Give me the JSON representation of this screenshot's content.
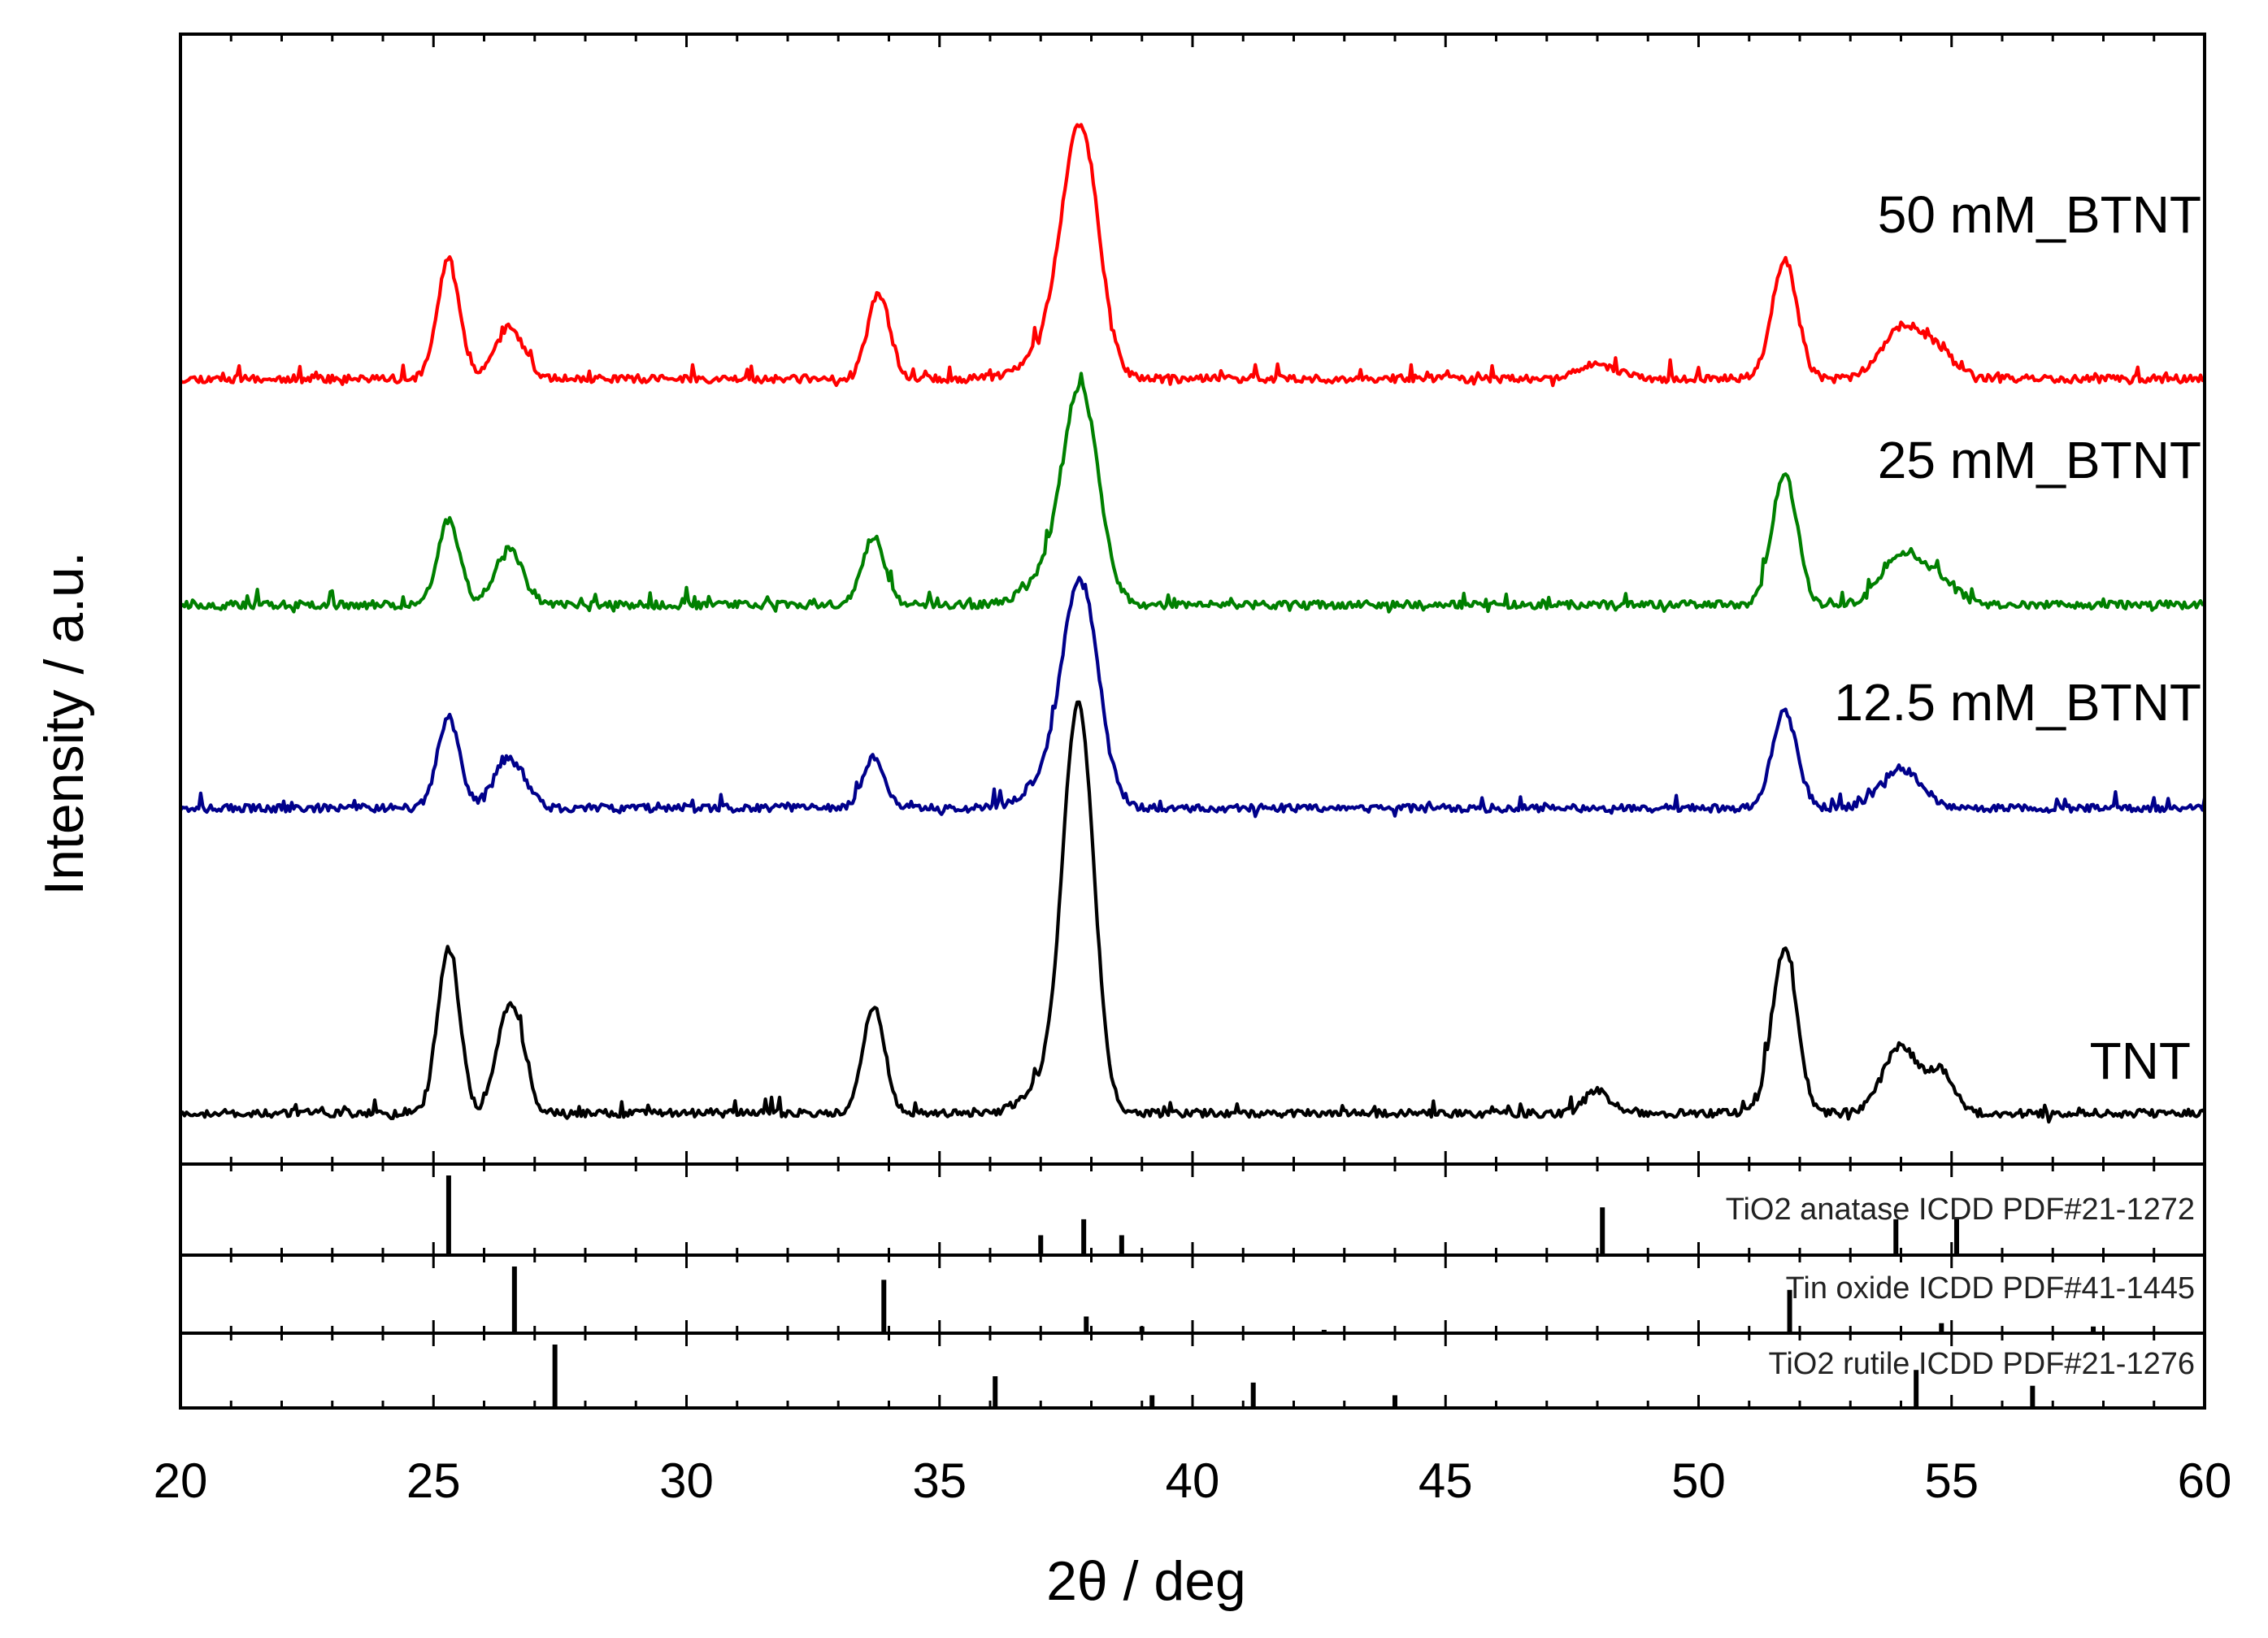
{
  "chart_data": {
    "type": "line",
    "xlabel": "2θ / deg",
    "ylabel": "Intensity / a.u.",
    "xlim": [
      20,
      60
    ],
    "x_ticks": [
      20,
      25,
      30,
      35,
      40,
      45,
      50,
      55,
      60
    ],
    "x_tick_labels": [
      "20",
      "25",
      "30",
      "35",
      "40",
      "45",
      "50",
      "55",
      "60"
    ],
    "ylim": [
      0,
      10
    ],
    "grid": false,
    "series": [
      {
        "name": "50 mM_BTNT",
        "label": "50 mM_BTNT",
        "color": "#ff0000",
        "baseline": 6.95,
        "noise_seed": 11,
        "peaks": [
          [
            25.3,
            1.05,
            0.22
          ],
          [
            26.5,
            0.45,
            0.28
          ],
          [
            33.8,
            0.75,
            0.22
          ],
          [
            37.8,
            2.05,
            0.35
          ],
          [
            37.3,
            0.35,
            0.5
          ],
          [
            48.0,
            0.12,
            0.4
          ],
          [
            51.7,
            1.05,
            0.25
          ],
          [
            54.0,
            0.42,
            0.4
          ],
          [
            54.7,
            0.22,
            0.4
          ]
        ]
      },
      {
        "name": "25 mM_BTNT",
        "label": "25 mM_BTNT",
        "color": "#008000",
        "baseline": 4.95,
        "noise_seed": 23,
        "peaks": [
          [
            25.3,
            0.75,
            0.22
          ],
          [
            26.5,
            0.5,
            0.28
          ],
          [
            33.7,
            0.6,
            0.22
          ],
          [
            37.8,
            1.75,
            0.35
          ],
          [
            37.3,
            0.3,
            0.5
          ],
          [
            51.7,
            1.15,
            0.25
          ],
          [
            54.0,
            0.42,
            0.4
          ],
          [
            54.7,
            0.2,
            0.4
          ]
        ]
      },
      {
        "name": "12.5 mM_BTNT",
        "label": "12.5 mM_BTNT",
        "color": "#00008b",
        "baseline": 3.15,
        "noise_seed": 37,
        "peaks": [
          [
            25.3,
            0.8,
            0.22
          ],
          [
            26.5,
            0.45,
            0.3
          ],
          [
            33.7,
            0.45,
            0.22
          ],
          [
            37.8,
            1.85,
            0.35
          ],
          [
            37.3,
            0.3,
            0.5
          ],
          [
            51.7,
            0.85,
            0.25
          ],
          [
            54.0,
            0.35,
            0.4
          ]
        ]
      },
      {
        "name": "TNT",
        "label": "TNT",
        "color": "#000000",
        "baseline": 0.45,
        "noise_seed": 53,
        "peaks": [
          [
            25.3,
            1.45,
            0.22
          ],
          [
            26.4,
            0.7,
            0.2
          ],
          [
            26.7,
            0.55,
            0.2
          ],
          [
            33.7,
            0.95,
            0.22
          ],
          [
            37.75,
            3.5,
            0.3
          ],
          [
            37.2,
            0.3,
            0.45
          ],
          [
            48.0,
            0.2,
            0.25
          ],
          [
            51.7,
            1.45,
            0.25
          ],
          [
            54.0,
            0.6,
            0.35
          ],
          [
            54.8,
            0.35,
            0.25
          ]
        ]
      }
    ],
    "reference_patterns": [
      {
        "name": "TiO2 anatase ICDD PDF#21-1272",
        "label": "TiO2 anatase ICDD PDF#21-1272",
        "lines": [
          [
            25.3,
            100
          ],
          [
            37.0,
            25
          ],
          [
            37.85,
            45
          ],
          [
            38.6,
            25
          ],
          [
            48.1,
            60
          ],
          [
            53.9,
            45
          ],
          [
            55.1,
            45
          ]
        ]
      },
      {
        "name": "Tin oxide ICDD PDF#41-1445",
        "label": "Tin oxide ICDD PDF#41-1445",
        "lines": [
          [
            26.6,
            100
          ],
          [
            33.9,
            80
          ],
          [
            37.9,
            25
          ],
          [
            39.0,
            10
          ],
          [
            42.6,
            5
          ],
          [
            51.8,
            65
          ],
          [
            54.8,
            15
          ],
          [
            57.8,
            10
          ]
        ]
      },
      {
        "name": "TiO2 rutile ICDD PDF#21-1276",
        "label": "TiO2 rutile ICDD PDF#21-1276",
        "lines": [
          [
            27.4,
            100
          ],
          [
            36.1,
            50
          ],
          [
            39.2,
            20
          ],
          [
            41.2,
            40
          ],
          [
            44.0,
            20
          ],
          [
            54.3,
            60
          ],
          [
            56.6,
            35
          ]
        ]
      }
    ]
  }
}
